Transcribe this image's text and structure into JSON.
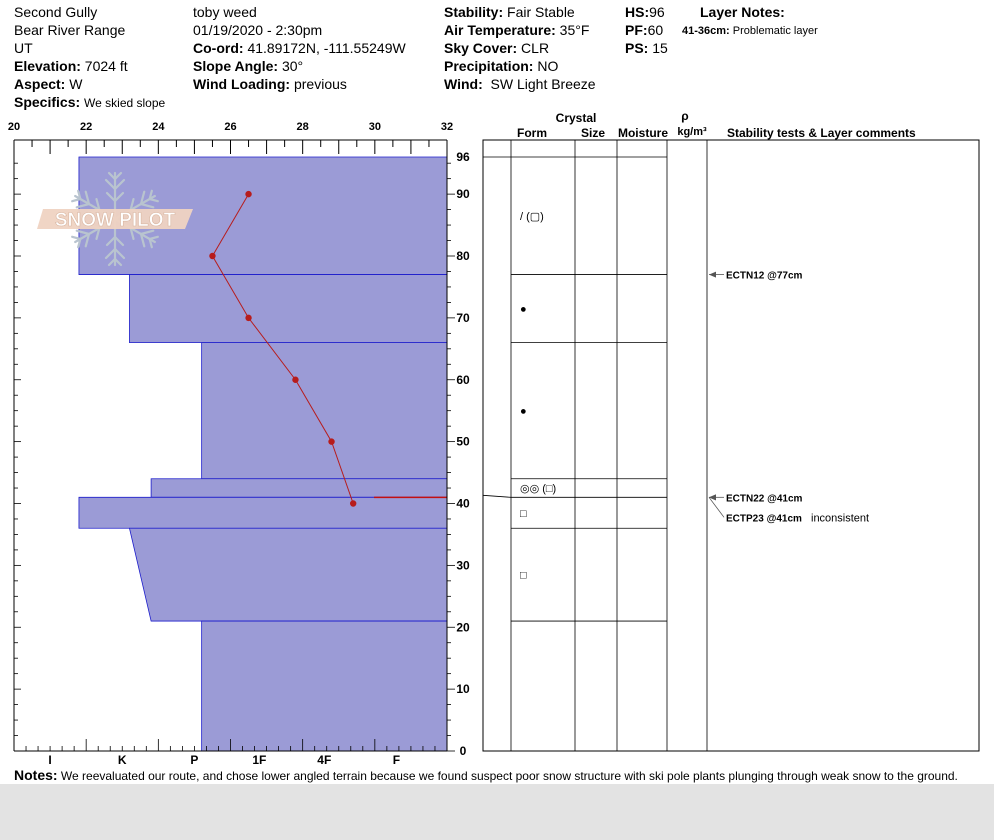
{
  "header": {
    "location": "Second Gully",
    "range": "Bear River Range",
    "state": "UT",
    "elevation_label": "Elevation:",
    "elevation_value": "7024 ft",
    "aspect_label": "Aspect:",
    "aspect_value": "W",
    "specifics_label": "Specifics:",
    "specifics_value": "We skied slope",
    "observer": "toby weed",
    "datetime": "01/19/2020 - 2:30pm",
    "coord_label": "Co-ord:",
    "coord_value": "41.89172N, -111.55249W",
    "slope_label": "Slope Angle:",
    "slope_value": "30°",
    "wind_loading_label": "Wind Loading:",
    "wind_loading_value": "previous",
    "stability_label": "Stability:",
    "stability_value": "Fair Stable",
    "air_temp_label": "Air Temperature:",
    "air_temp_value": "35°F",
    "sky_label": "Sky Cover:",
    "sky_value": "CLR",
    "precip_label": "Precipitation:",
    "precip_value": "NO",
    "wind_label": "Wind:",
    "wind_value": "SW Light Breeze",
    "hs_label": "HS:",
    "hs_value": "96",
    "pf_label": "PF:",
    "pf_value": "60",
    "ps_label": "PS:",
    "ps_value": "15",
    "layer_notes_title": "Layer Notes:",
    "layer_note_range": "41-36cm:",
    "layer_note_text": "Problematic layer"
  },
  "logo_text": "SNOW PILOT",
  "columns": {
    "crystal": "Crystal",
    "form": "Form",
    "size": "Size",
    "moisture": "Moisture",
    "rho": "ρ",
    "density_unit": "kg/m³",
    "tests": "Stability tests & Layer comments"
  },
  "notes": {
    "label": "Notes:",
    "text": "We reevaluated our route, and chose lower angled terrain because we found suspect poor snow structure with ski pole plants plunging through weak snow to the ground."
  },
  "chart_data": {
    "type": "snow-profile",
    "colors": {
      "hardness_fill": "#9b9bd6",
      "hardness_edge": "#1e1ecc",
      "temp_line": "#b71c1c",
      "test_line": "#c41010"
    },
    "temp_axis": {
      "ticks": [
        20,
        22,
        24,
        26,
        28,
        30,
        32
      ],
      "range": [
        20,
        32
      ],
      "unit": "F"
    },
    "height_axis": {
      "ticks": [
        0,
        10,
        20,
        30,
        40,
        50,
        60,
        70,
        80,
        90,
        96
      ],
      "range": [
        0,
        96
      ],
      "unit": "cm"
    },
    "hardness_axis": {
      "labels": [
        "I",
        "K",
        "P",
        "1F",
        "4F",
        "F"
      ],
      "levels": [
        0,
        1,
        2,
        3,
        4,
        5,
        6
      ]
    },
    "temperature_profile": [
      {
        "height": 90,
        "temp": 26.5
      },
      {
        "height": 80,
        "temp": 25.5
      },
      {
        "height": 70,
        "temp": 26.5
      },
      {
        "height": 60,
        "temp": 27.8
      },
      {
        "height": 50,
        "temp": 28.8
      },
      {
        "height": 40,
        "temp": 29.4
      }
    ],
    "hardness_layers": [
      {
        "top": 96,
        "bottom": 77,
        "hardness_top": 5.1,
        "hardness_bottom": 5.1
      },
      {
        "top": 77,
        "bottom": 66,
        "hardness_top": 4.4,
        "hardness_bottom": 4.4
      },
      {
        "top": 66,
        "bottom": 44,
        "hardness_top": 3.4,
        "hardness_bottom": 3.4
      },
      {
        "top": 44,
        "bottom": 41,
        "hardness_top": 4.1,
        "hardness_bottom": 4.1
      },
      {
        "top": 41,
        "bottom": 36,
        "hardness_top": 5.1,
        "hardness_bottom": 5.1
      },
      {
        "top": 36,
        "bottom": 21,
        "hardness_top": 4.4,
        "hardness_bottom": 4.1
      },
      {
        "top": 21,
        "bottom": 0,
        "hardness_top": 3.4,
        "hardness_bottom": 3.4
      }
    ],
    "failure_layer_height": 41,
    "layer_boundaries": [
      96,
      77,
      66,
      44,
      41,
      36,
      21
    ],
    "crystal_forms": [
      {
        "height": 86.5,
        "symbol": "/ (▢)"
      },
      {
        "height": 71.5,
        "symbol": "●"
      },
      {
        "height": 55,
        "symbol": "●"
      },
      {
        "height": 42.5,
        "symbol": "◎◎ (□)"
      },
      {
        "height": 38.5,
        "symbol": "□"
      },
      {
        "height": 28.5,
        "symbol": "□"
      }
    ],
    "stability_tests": [
      {
        "label": "ECTN12 @77cm",
        "height": 77,
        "comment": ""
      },
      {
        "label": "ECTN22 @41cm",
        "height": 41,
        "comment": ""
      },
      {
        "label": "ECTP23 @41cm",
        "height": 41,
        "comment": "inconsistent"
      }
    ]
  }
}
